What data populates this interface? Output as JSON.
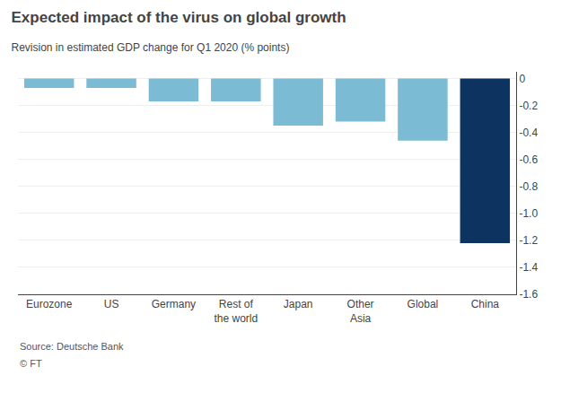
{
  "chart_data": {
    "type": "bar",
    "title": "Expected impact of the virus on global growth",
    "subtitle": "Revision in estimated GDP change for Q1 2020 (% points)",
    "categories": [
      "Eurozone",
      "US",
      "Germany",
      "Rest of\nthe world",
      "Japan",
      "Other\nAsia",
      "Global",
      "China"
    ],
    "values": [
      -0.07,
      -0.07,
      -0.17,
      -0.17,
      -0.35,
      -0.32,
      -0.46,
      -1.22
    ],
    "colors": [
      "#7bbcd4",
      "#7bbcd4",
      "#7bbcd4",
      "#7bbcd4",
      "#7bbcd4",
      "#7bbcd4",
      "#7bbcd4",
      "#0d3461"
    ],
    "ylim": [
      -1.6,
      0.05
    ],
    "yticks": [
      0,
      -0.2,
      -0.4,
      -0.6,
      -0.8,
      {
        "value": -1.0,
        "label": "-1.0"
      },
      -1.2,
      -1.4,
      -1.6
    ],
    "grid": true,
    "annotations": [
      "Source: Deutsche Bank",
      "© FT"
    ]
  }
}
